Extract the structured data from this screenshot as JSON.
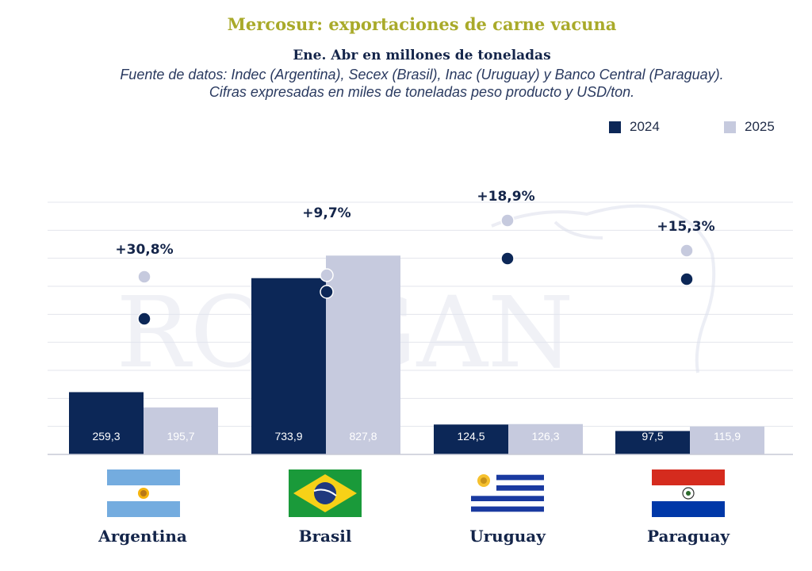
{
  "title": "Mercosur: exportaciones de carne vacuna",
  "subtitle": "Ene. Abr en millones de toneladas",
  "source": "Fuente de datos: Indec (Argentina), Secex (Brasil), Inac (Uruguay) y Banco Central (Paraguay). Cifras expresadas en miles de toneladas peso producto y USD/ton.",
  "watermark": "ROSGAN",
  "colors": {
    "s2024": "#0c2757",
    "s2025": "#c6cade",
    "title": "#a9aa2a"
  },
  "chart_data": {
    "type": "bar",
    "categories": [
      "Argentina",
      "Brasil",
      "Uruguay",
      "Paraguay"
    ],
    "series": [
      {
        "name": "2024",
        "values": [
          259.3,
          733.9,
          124.5,
          97.5
        ],
        "labels": [
          "259,3",
          "733,9",
          "124,5",
          "97,5"
        ]
      },
      {
        "name": "2025",
        "values": [
          195.7,
          827.8,
          126.3,
          115.9
        ],
        "labels": [
          "195,7",
          "827,8",
          "126,3",
          "115,9"
        ]
      }
    ],
    "price_change_labels": [
      "+30,8%",
      "+9,7%",
      "+18,9%",
      "+15,3%"
    ],
    "ylim": [
      0,
      1050
    ],
    "grid": true,
    "legend_position": "top-right"
  }
}
